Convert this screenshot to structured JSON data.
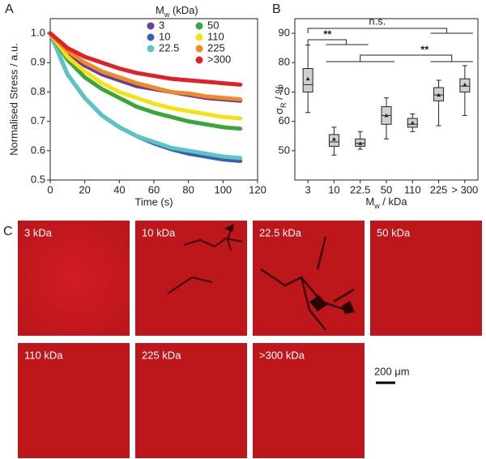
{
  "panel_labels": [
    "A",
    "B",
    "C"
  ],
  "chart_data": [
    {
      "type": "line",
      "x_label": "Time (s)",
      "y_label": "Normalised Stress / a.u.",
      "legend_title": "M",
      "legend_title_sub": "w",
      "legend_title_rest": " (kDa)",
      "x": [
        0,
        10,
        20,
        30,
        40,
        50,
        60,
        70,
        80,
        90,
        100,
        110
      ],
      "series": [
        {
          "name": "3",
          "color": "#6a3d9a",
          "values": [
            1,
            0.93,
            0.89,
            0.86,
            0.84,
            0.82,
            0.81,
            0.8,
            0.79,
            0.78,
            0.775,
            0.77
          ]
        },
        {
          "name": "10",
          "color": "#3a5fb0",
          "values": [
            1,
            0.86,
            0.78,
            0.72,
            0.68,
            0.65,
            0.625,
            0.605,
            0.59,
            0.58,
            0.57,
            0.565
          ]
        },
        {
          "name": "22.5",
          "color": "#5cc4c4",
          "values": [
            1,
            0.86,
            0.78,
            0.72,
            0.68,
            0.65,
            0.63,
            0.61,
            0.6,
            0.59,
            0.58,
            0.575
          ]
        },
        {
          "name": "50",
          "color": "#3aa63a",
          "values": [
            1,
            0.91,
            0.85,
            0.81,
            0.78,
            0.75,
            0.73,
            0.715,
            0.7,
            0.69,
            0.68,
            0.675
          ]
        },
        {
          "name": "110",
          "color": "#f5e214",
          "values": [
            1,
            0.92,
            0.87,
            0.83,
            0.8,
            0.78,
            0.76,
            0.745,
            0.735,
            0.725,
            0.715,
            0.71
          ]
        },
        {
          "name": "225",
          "color": "#f08a24",
          "values": [
            1,
            0.94,
            0.9,
            0.87,
            0.85,
            0.83,
            0.815,
            0.8,
            0.795,
            0.785,
            0.78,
            0.775
          ]
        },
        {
          "name": ">300",
          "color": "#e0202a",
          "values": [
            1,
            0.95,
            0.92,
            0.9,
            0.88,
            0.865,
            0.855,
            0.845,
            0.84,
            0.835,
            0.83,
            0.825
          ]
        }
      ],
      "xlim": [
        0,
        120
      ],
      "xticks": [
        0,
        20,
        40,
        60,
        80,
        100,
        120
      ],
      "ylim": [
        0.5,
        1.05
      ],
      "yticks": [
        0.5,
        0.6,
        0.7,
        0.8,
        0.9,
        {
          "value": 1,
          "label": "1.0"
        }
      ]
    },
    {
      "type": "box",
      "y_label": "σ",
      "y_label_sub": "R",
      "y_label_rest": " / %",
      "x_label": "M",
      "x_label_sub": "w",
      "x_label_rest": " / kDa",
      "categories": [
        "3",
        "10",
        "22.5",
        "50",
        "110",
        "225",
        "> 300"
      ],
      "min": [
        63,
        48.5,
        50.5,
        54,
        56.5,
        58.5,
        62
      ],
      "q1": [
        70,
        51.5,
        51.5,
        59,
        58,
        67,
        70
      ],
      "median": [
        72.5,
        53,
        52.5,
        62,
        59,
        69,
        72
      ],
      "q3": [
        78,
        55.5,
        54,
        65,
        61,
        71.5,
        74.5
      ],
      "max": [
        86,
        58,
        56.5,
        68,
        62.5,
        74,
        79
      ],
      "mean": [
        74.5,
        54,
        52.5,
        62,
        59.5,
        69,
        72.5
      ],
      "ylim": [
        40,
        95
      ],
      "yticks": [
        50,
        60,
        70,
        80,
        90
      ],
      "annotations": [
        "n.s.",
        "**",
        "**"
      ]
    }
  ],
  "images": [
    "3 kDa",
    "10 kDa",
    "22.5 kDa",
    "50 kDa",
    "110 kDa",
    "225 kDa",
    ">300 kDa"
  ],
  "scale_bar": "200 μm"
}
